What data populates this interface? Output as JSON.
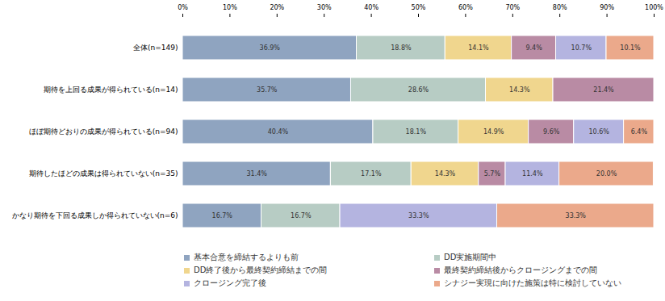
{
  "chart_data": {
    "type": "bar",
    "orientation": "horizontal",
    "stacked": true,
    "data_labels": true,
    "grid": false,
    "legend": "bottom",
    "categories": [
      "全体(n=149)",
      "期待を上回る成果が得られている(n=14)",
      "ほぼ期待どおりの成果が得られている(n=94)",
      "期待したほどの成果は得られていない(n=35)",
      "かなり期待を下回る成果しか得られていない(n=6)"
    ],
    "xlim": [
      0,
      100
    ],
    "xticks": [
      {
        "value": 0,
        "label": "0%"
      },
      {
        "value": 10,
        "label": "10%"
      },
      {
        "value": 20,
        "label": "20%"
      },
      {
        "value": 30,
        "label": "30%"
      },
      {
        "value": 40,
        "label": "40%"
      },
      {
        "value": 50,
        "label": "50%"
      },
      {
        "value": 60,
        "label": "60%"
      },
      {
        "value": 70,
        "label": "70%"
      },
      {
        "value": 80,
        "label": "80%"
      },
      {
        "value": 90,
        "label": "90%"
      },
      {
        "value": 100,
        "label": "100%"
      }
    ],
    "series": [
      {
        "name": "基本合意を締結するよりも前",
        "color": "#8fa4c0",
        "values": [
          36.9,
          35.7,
          40.4,
          31.4,
          16.7
        ],
        "value_labels": [
          "36.9%",
          "35.7%",
          "40.4%",
          "31.4%",
          "16.7%"
        ]
      },
      {
        "name": "DD実施期間中",
        "color": "#b7ccc4",
        "values": [
          18.8,
          28.6,
          18.1,
          17.1,
          16.7
        ],
        "value_labels": [
          "18.8%",
          "28.6%",
          "18.1%",
          "17.1%",
          "16.7%"
        ]
      },
      {
        "name": "DD終了後から最終契約締結までの間",
        "color": "#f0d68e",
        "values": [
          14.1,
          14.3,
          14.9,
          14.3,
          0
        ],
        "value_labels": [
          "14.1%",
          "14.3%",
          "14.9%",
          "14.3%",
          null
        ]
      },
      {
        "name": "最終契約締結後からクロージングまでの間",
        "color": "#b98ba4",
        "values": [
          9.4,
          21.4,
          9.6,
          5.7,
          0
        ],
        "value_labels": [
          "9.4%",
          "21.4%",
          "9.6%",
          "5.7%",
          null
        ]
      },
      {
        "name": "クロージング完了後",
        "color": "#b4b4e0",
        "values": [
          10.7,
          0,
          10.6,
          11.4,
          33.3
        ],
        "value_labels": [
          "10.7%",
          null,
          "10.6%",
          "11.4%",
          "33.3%"
        ]
      },
      {
        "name": "シナジー実現に向けた施策は特に検討していない",
        "color": "#eba98b",
        "values": [
          10.1,
          0,
          6.4,
          20.0,
          33.3
        ],
        "value_labels": [
          "10.1%",
          null,
          "6.4%",
          "20.0%",
          "33.3%"
        ]
      }
    ]
  }
}
